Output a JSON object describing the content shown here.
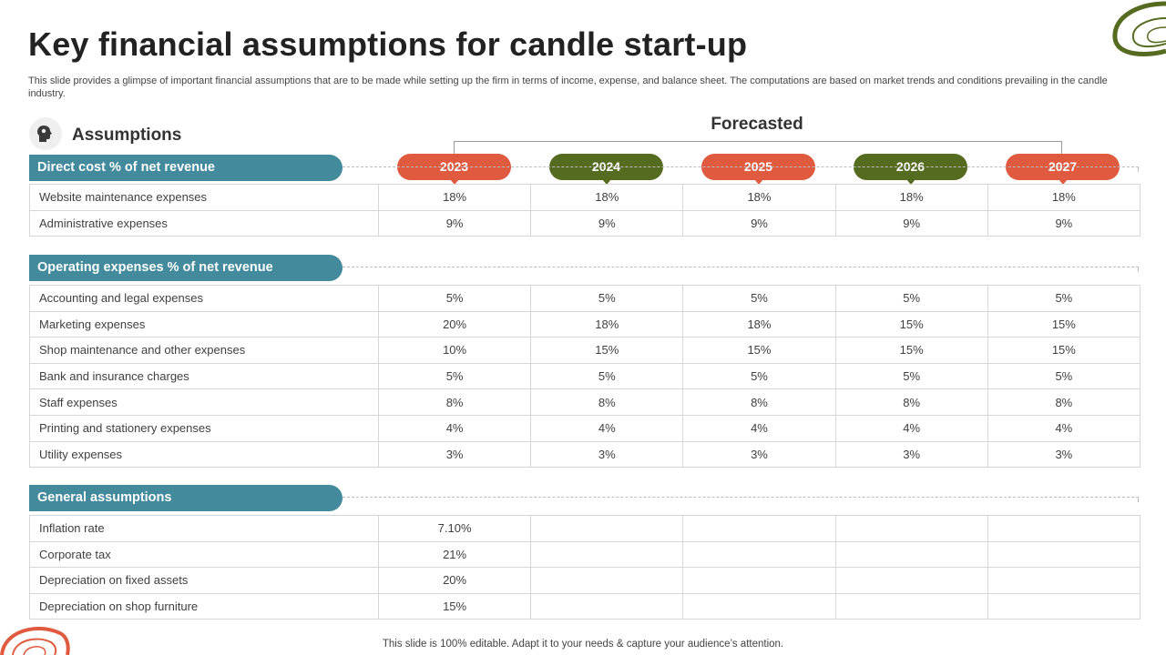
{
  "title": "Key financial assumptions for candle start-up",
  "subtitle": "This slide provides a glimpse of important financial assumptions that are to be made while setting up the firm in terms of income, expense, and balance sheet. The computations are based on market trends and conditions prevailing in the candle industry.",
  "assumptions_label": "Assumptions",
  "forecasted_label": "Forecasted",
  "years": [
    "2023",
    "2024",
    "2025",
    "2026",
    "2027"
  ],
  "colors": {
    "red": "#e05a3f",
    "olive": "#556b1f",
    "teal": "#428a9c"
  },
  "sections": [
    {
      "title": "Direct cost % of net revenue",
      "rows": [
        {
          "label": "Website maintenance expenses",
          "values": [
            "18%",
            "18%",
            "18%",
            "18%",
            "18%"
          ]
        },
        {
          "label": "Administrative expenses",
          "values": [
            "9%",
            "9%",
            "9%",
            "9%",
            "9%"
          ]
        }
      ]
    },
    {
      "title": "Operating expenses % of net revenue",
      "rows": [
        {
          "label": "Accounting and legal expenses",
          "values": [
            "5%",
            "5%",
            "5%",
            "5%",
            "5%"
          ]
        },
        {
          "label": "Marketing expenses",
          "values": [
            "20%",
            "18%",
            "18%",
            "15%",
            "15%"
          ]
        },
        {
          "label": "Shop maintenance and other expenses",
          "values": [
            "10%",
            "15%",
            "15%",
            "15%",
            "15%"
          ]
        },
        {
          "label": "Bank and insurance charges",
          "values": [
            "5%",
            "5%",
            "5%",
            "5%",
            "5%"
          ]
        },
        {
          "label": "Staff expenses",
          "values": [
            "8%",
            "8%",
            "8%",
            "8%",
            "8%"
          ]
        },
        {
          "label": "Printing and stationery expenses",
          "values": [
            "4%",
            "4%",
            "4%",
            "4%",
            "4%"
          ]
        },
        {
          "label": "Utility expenses",
          "values": [
            "3%",
            "3%",
            "3%",
            "3%",
            "3%"
          ]
        }
      ]
    },
    {
      "title": "General assumptions",
      "rows": [
        {
          "label": "Inflation rate",
          "values": [
            "7.10%",
            "",
            "",
            "",
            ""
          ]
        },
        {
          "label": "Corporate tax",
          "values": [
            "21%",
            "",
            "",
            "",
            ""
          ]
        },
        {
          "label": "Depreciation on fixed assets",
          "values": [
            "20%",
            "",
            "",
            "",
            ""
          ]
        },
        {
          "label": "Depreciation on shop furniture",
          "values": [
            "15%",
            "",
            "",
            "",
            ""
          ]
        }
      ]
    }
  ],
  "footer": "This slide is 100% editable. Adapt it to your needs & capture your audience’s attention."
}
